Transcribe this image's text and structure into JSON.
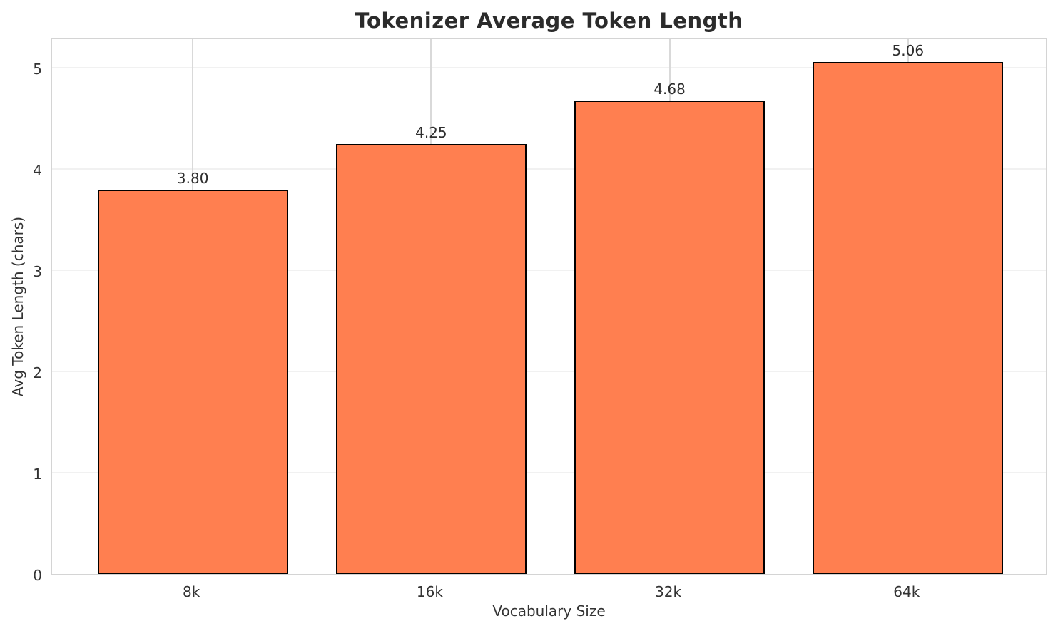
{
  "chart_data": {
    "type": "bar",
    "title": "Tokenizer Average Token Length",
    "xlabel": "Vocabulary Size",
    "ylabel": "Avg Token Length (chars)",
    "categories": [
      "8k",
      "16k",
      "32k",
      "64k"
    ],
    "values": [
      3.8,
      4.25,
      4.68,
      5.06
    ],
    "value_labels": [
      "3.80",
      "4.25",
      "4.68",
      "5.06"
    ],
    "yticks": [
      0,
      1,
      2,
      3,
      4,
      5
    ],
    "ytick_labels": [
      "0",
      "1",
      "2",
      "3",
      "4",
      "5"
    ],
    "ylim": [
      0,
      5.313
    ],
    "grid": "both",
    "legend": "none",
    "bar_fill_color": "#FF7F50",
    "bar_edge_color": "#000000",
    "grid_h_color": "#f1f1f1",
    "grid_v_color": "#d9d9d9",
    "spine_color": "#d4d4d4"
  }
}
